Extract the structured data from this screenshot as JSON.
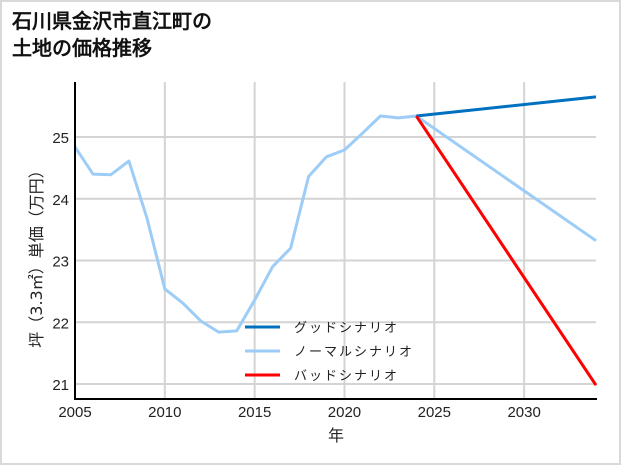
{
  "title_line1": "石川県金沢市直江町の",
  "title_line2": "土地の価格推移",
  "colors": {
    "good": "#0070c0",
    "normal": "#9dcdf7",
    "bad": "#ff0000",
    "grid": "#d4d4d4",
    "axis": "#000000",
    "frame": "#d9d9d9"
  },
  "chart_data": {
    "type": "line",
    "title": "石川県金沢市直江町の土地の価格推移",
    "xlabel": "年",
    "ylabel": "坪（3.3㎡）単価（万円）",
    "xlim": [
      2005,
      2034
    ],
    "ylim": [
      20.78,
      25.98
    ],
    "x_ticks": [
      2005,
      2010,
      2015,
      2020,
      2025,
      2030
    ],
    "y_ticks": [
      21,
      22,
      23,
      24,
      25
    ],
    "grid": true,
    "legend_position": "lower center",
    "series": [
      {
        "name": "グッドシナリオ",
        "key": "good",
        "x": [
          2024,
          2034
        ],
        "values": [
          25.34,
          25.65
        ]
      },
      {
        "name": "ノーマルシナリオ",
        "key": "normal",
        "x": [
          2005,
          2006,
          2007,
          2008,
          2009,
          2010,
          2011,
          2012,
          2013,
          2014,
          2015,
          2016,
          2017,
          2018,
          2019,
          2020,
          2021,
          2022,
          2023,
          2024,
          2034
        ],
        "values": [
          24.84,
          24.4,
          24.39,
          24.61,
          23.69,
          22.54,
          22.31,
          22.02,
          21.84,
          21.86,
          22.36,
          22.9,
          23.2,
          24.36,
          24.68,
          24.79,
          25.06,
          25.34,
          25.31,
          25.34,
          23.32
        ]
      },
      {
        "name": "バッドシナリオ",
        "key": "bad",
        "x": [
          2024,
          2034
        ],
        "values": [
          25.34,
          20.98
        ]
      }
    ]
  }
}
